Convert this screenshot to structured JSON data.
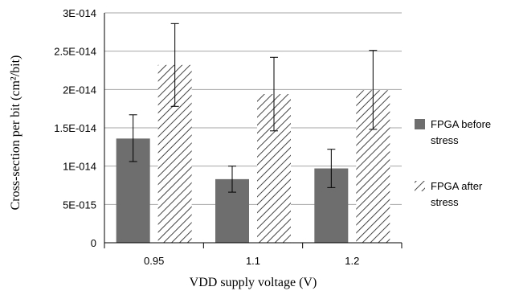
{
  "chart_data": {
    "type": "bar",
    "title": "",
    "xlabel": "VDD supply voltage (V)",
    "ylabel": "Cross-section per bit (cm²/bit)",
    "categories": [
      "0.95",
      "1.1",
      "1.2"
    ],
    "ylim": [
      0,
      3e-14
    ],
    "yticks": [
      0,
      5e-15,
      1e-14,
      1.5e-14,
      2e-14,
      2.5e-14,
      3e-14
    ],
    "ytick_labels": [
      "0",
      "5E-015",
      "1E-014",
      "1.5E-014",
      "2E-014",
      "2.5E-014",
      "3E-014"
    ],
    "grid": "horizontal",
    "legend_position": "right",
    "series": [
      {
        "name": "FPGA before stress",
        "legend_lines": [
          "FPGA before",
          "stress"
        ],
        "fill": "solid",
        "color": "#6e6e6e",
        "values": [
          1.36e-14,
          8.3e-15,
          9.7e-15
        ],
        "error_low": [
          1.06e-14,
          6.6e-15,
          7.2e-15
        ],
        "error_high": [
          1.67e-14,
          1e-14,
          1.22e-14
        ]
      },
      {
        "name": "FPGA after stress",
        "legend_lines": [
          "FPGA after",
          "stress"
        ],
        "fill": "hatched",
        "color": "#444444",
        "values": [
          2.32e-14,
          1.94e-14,
          1.99e-14
        ],
        "error_low": [
          1.78e-14,
          1.46e-14,
          1.48e-14
        ],
        "error_high": [
          2.86e-14,
          2.42e-14,
          2.51e-14
        ]
      }
    ]
  }
}
